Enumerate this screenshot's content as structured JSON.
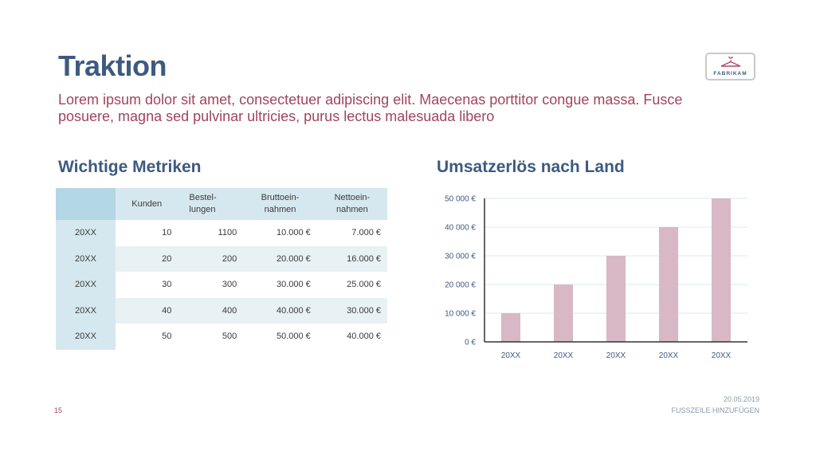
{
  "slide": {
    "title": "Traktion",
    "subtitle": "Lorem ipsum dolor sit amet, consectetuer adipiscing elit. Maecenas porttitor congue massa. Fusce posuere, magna sed pulvinar ultricies, purus lectus malesuada libero",
    "logo_text": "FABRIKAM",
    "page_number": "15",
    "date": "20.05.2019",
    "footer": "FUSSZEILE HINZUFÜGEN"
  },
  "metrics": {
    "heading": "Wichtige Metriken",
    "columns": [
      "Kunden",
      "Bestel-\nlungen",
      "Bruttoein-\nnahmen",
      "Nettoein-\nnahmen"
    ],
    "rows": [
      {
        "year": "20XX",
        "kunden": "10",
        "bestellungen": "1100",
        "brutto": "10.000 €",
        "netto": "7.000 €"
      },
      {
        "year": "20XX",
        "kunden": "20",
        "bestellungen": "200",
        "brutto": "20.000 €",
        "netto": "16.000 €"
      },
      {
        "year": "20XX",
        "kunden": "30",
        "bestellungen": "300",
        "brutto": "30.000 €",
        "netto": "25.000 €"
      },
      {
        "year": "20XX",
        "kunden": "40",
        "bestellungen": "400",
        "brutto": "40.000 €",
        "netto": "30.000 €"
      },
      {
        "year": "20XX",
        "kunden": "50",
        "bestellungen": "500",
        "brutto": "50.000 €",
        "netto": "40.000 €"
      }
    ]
  },
  "chart_data": {
    "type": "bar",
    "title": "Umsatzerlös nach Land",
    "categories": [
      "20XX",
      "20XX",
      "20XX",
      "20XX",
      "20XX"
    ],
    "values": [
      10000,
      20000,
      30000,
      40000,
      50000
    ],
    "ylim": [
      0,
      50000
    ],
    "yticks": [
      0,
      10000,
      20000,
      30000,
      40000,
      50000
    ],
    "ytick_labels": [
      "0 €",
      "10 000 €",
      "20 000 €",
      "30 000 €",
      "40 000 €",
      "50 000 €"
    ],
    "bar_color": "#d8b8c4",
    "grid_color": "#dce9ee",
    "axis_color": "#333333",
    "grid": true
  }
}
